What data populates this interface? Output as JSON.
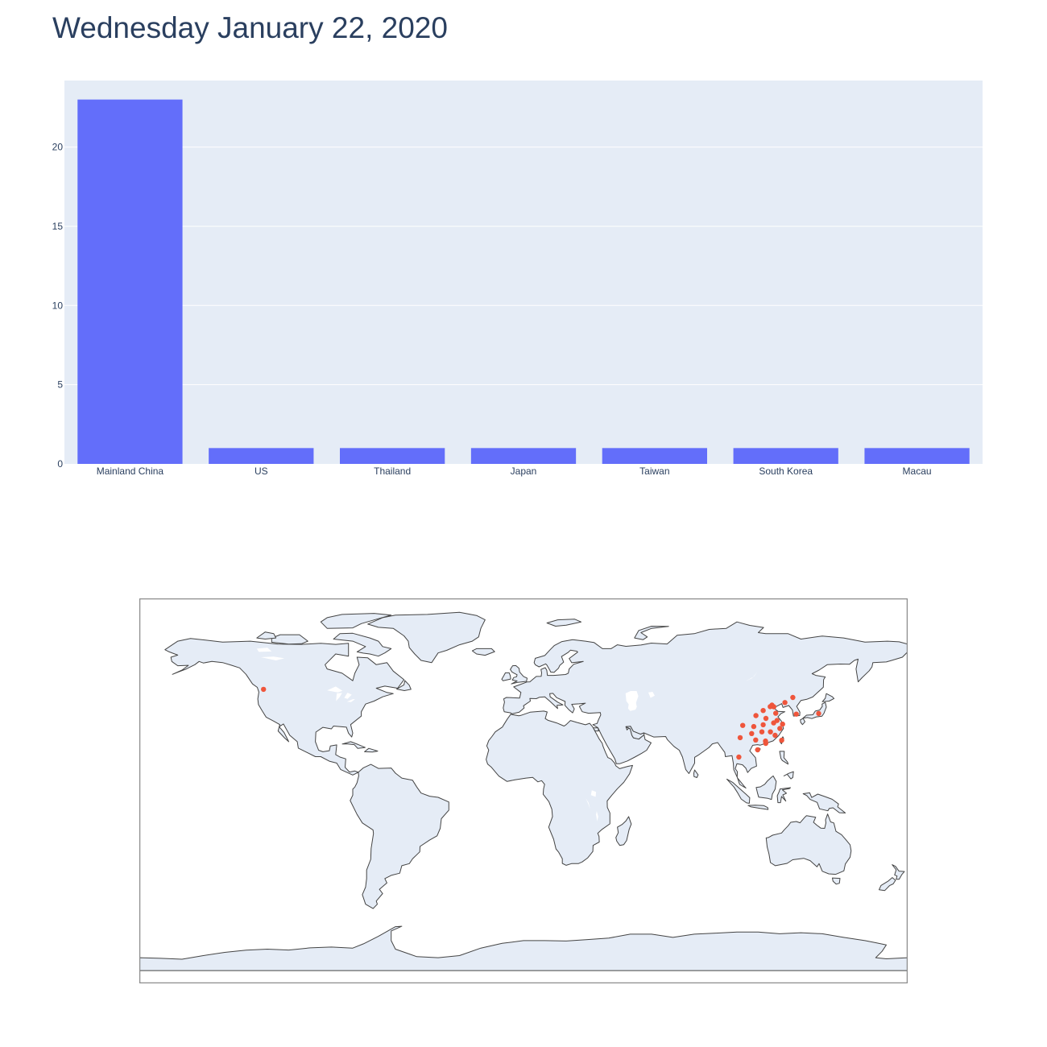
{
  "page": {
    "title": "Wednesday January 22, 2020"
  },
  "colors": {
    "plot_background": "#e5ecf6",
    "bar": "#636efa",
    "marker": "#ef553b",
    "land": "#e5ecf6",
    "coastline": "#444444",
    "map_frame": "#8c8c8c",
    "text": "#2a3f5f"
  },
  "chart_data": [
    {
      "type": "bar",
      "title": "",
      "xlabel": "",
      "ylabel": "",
      "categories": [
        "Mainland China",
        "US",
        "Thailand",
        "Japan",
        "Taiwan",
        "South Korea",
        "Macau"
      ],
      "values": [
        23,
        1,
        1,
        1,
        1,
        1,
        1
      ],
      "ylim": [
        0,
        24.2
      ],
      "yticks": [
        0,
        5,
        10,
        15,
        20
      ],
      "grid": true,
      "legend": "none"
    },
    {
      "type": "scatter",
      "subtype": "geo-scatter",
      "projection": "equirectangular",
      "lonlim": [
        -180,
        180
      ],
      "latlim": [
        -90,
        90
      ],
      "points": [
        {
          "lon": -121.8,
          "lat": 47.5
        },
        {
          "lon": 117.2,
          "lat": 31.8
        },
        {
          "lon": 116.4,
          "lat": 40.1
        },
        {
          "lon": 107.9,
          "lat": 30.1
        },
        {
          "lon": 117.9,
          "lat": 26.0
        },
        {
          "lon": 113.4,
          "lat": 23.3
        },
        {
          "lon": 108.8,
          "lat": 23.8
        },
        {
          "lon": 106.9,
          "lat": 26.8
        },
        {
          "lon": 109.7,
          "lat": 19.2
        },
        {
          "lon": 115.6,
          "lat": 39.4
        },
        {
          "lon": 113.6,
          "lat": 33.9
        },
        {
          "lon": 112.3,
          "lat": 30.9
        },
        {
          "lon": 111.7,
          "lat": 27.6
        },
        {
          "lon": 118.8,
          "lat": 32.9
        },
        {
          "lon": 115.7,
          "lat": 27.6
        },
        {
          "lon": 126.2,
          "lat": 43.7
        },
        {
          "lon": 122.5,
          "lat": 41.3
        },
        {
          "lon": 121.4,
          "lat": 31.2
        },
        {
          "lon": 118.2,
          "lat": 36.3
        },
        {
          "lon": 102.7,
          "lat": 30.6
        },
        {
          "lon": 117.3,
          "lat": 39.3
        },
        {
          "lon": 101.5,
          "lat": 24.9
        },
        {
          "lon": 120.1,
          "lat": 29.2
        },
        {
          "lon": 112.3,
          "lat": 37.6
        },
        {
          "lon": 108.9,
          "lat": 35.2
        },
        {
          "lon": 113.5,
          "lat": 22.2
        },
        {
          "lon": 121.0,
          "lat": 23.7
        },
        {
          "lon": 100.9,
          "lat": 15.8
        },
        {
          "lon": 138.3,
          "lat": 36.2
        },
        {
          "lon": 127.8,
          "lat": 35.9
        }
      ]
    }
  ]
}
